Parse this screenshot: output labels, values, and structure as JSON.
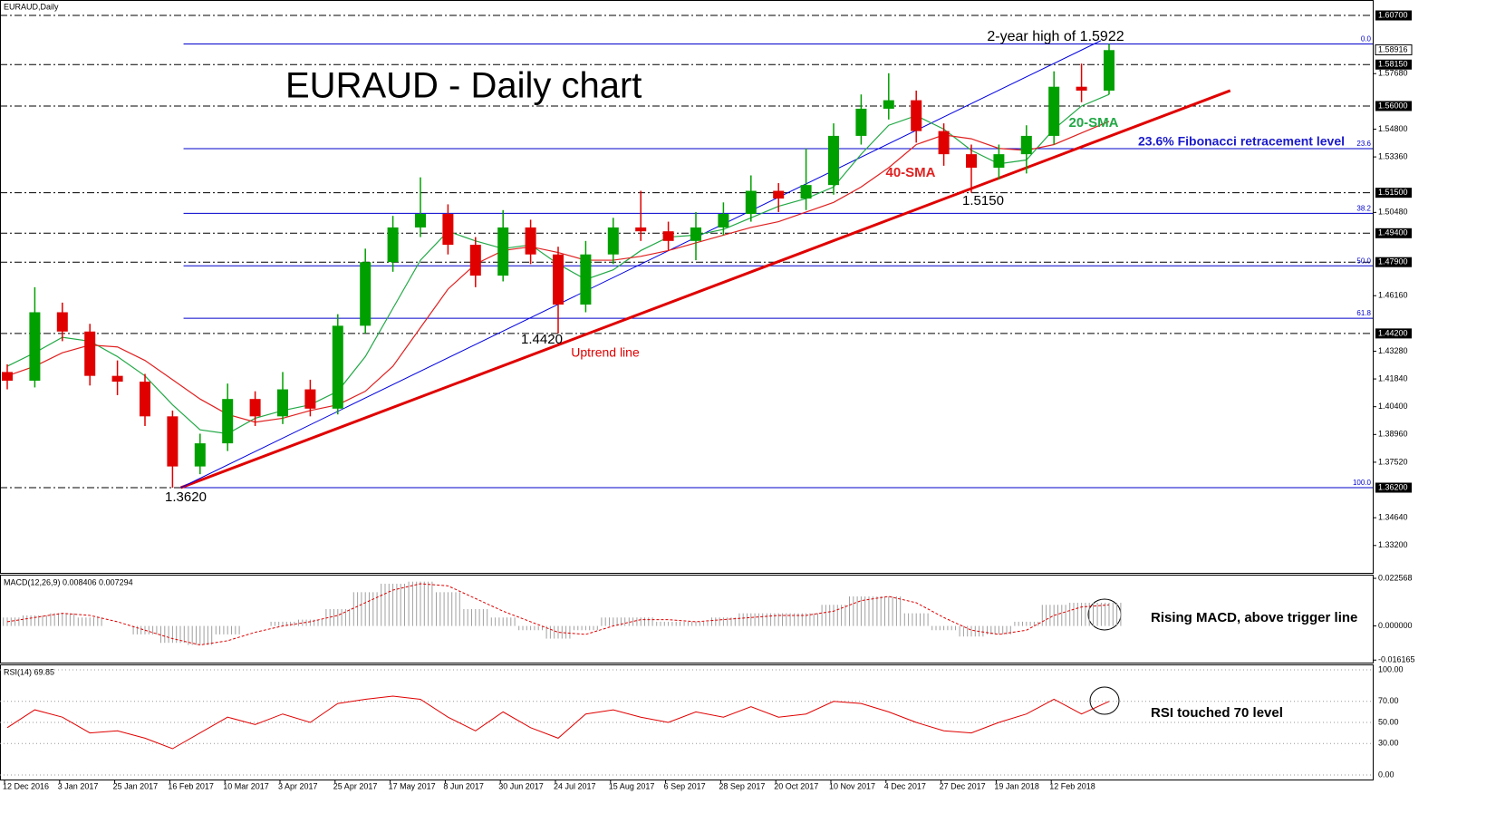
{
  "chart_data": [
    {
      "type": "candlestick",
      "symbol_label": "EURAUD,Daily",
      "title": "EURAUD - Daily chart",
      "categories": [
        "12 Dec 2016",
        null,
        "3 Jan 2017",
        null,
        "25 Jan 2017",
        null,
        "16 Feb 2017",
        null,
        "10 Mar 2017",
        null,
        "3 Apr 2017",
        null,
        "25 Apr 2017",
        null,
        "17 May 2017",
        null,
        "8 Jun 2017",
        null,
        "30 Jun 2017",
        null,
        "24 Jul 2017",
        null,
        "15 Aug 2017",
        null,
        "6 Sep 2017",
        null,
        "28 Sep 2017",
        null,
        "20 Oct 2017",
        null,
        "10 Nov 2017",
        null,
        "4 Dec 2017",
        null,
        "27 Dec 2017",
        null,
        "19 Jan 2018",
        null,
        "12 Feb 2018",
        null,
        null
      ],
      "open": [
        1.422,
        1.4175,
        1.453,
        1.443,
        1.42,
        1.417,
        1.399,
        1.373,
        1.385,
        1.408,
        1.399,
        1.413,
        1.403,
        1.446,
        1.479,
        1.497,
        1.504,
        1.488,
        1.472,
        1.497,
        1.483,
        1.457,
        1.483,
        1.497,
        1.495,
        1.49,
        1.497,
        1.504,
        1.516,
        1.512,
        1.519,
        1.5445,
        1.5586,
        1.563,
        1.547,
        1.535,
        1.528,
        1.535,
        1.5445,
        1.57,
        1.568
      ],
      "high": [
        1.426,
        1.466,
        1.458,
        1.447,
        1.428,
        1.421,
        1.402,
        1.39,
        1.416,
        1.412,
        1.422,
        1.418,
        1.452,
        1.486,
        1.503,
        1.523,
        1.509,
        1.492,
        1.506,
        1.501,
        1.487,
        1.49,
        1.502,
        1.516,
        1.5,
        1.505,
        1.51,
        1.524,
        1.52,
        1.538,
        1.551,
        1.566,
        1.577,
        1.568,
        1.551,
        1.54,
        1.54,
        1.55,
        1.578,
        1.582,
        1.5922
      ],
      "low": [
        1.413,
        1.414,
        1.438,
        1.415,
        1.41,
        1.394,
        1.362,
        1.369,
        1.381,
        1.394,
        1.395,
        1.399,
        1.4,
        1.442,
        1.474,
        1.492,
        1.483,
        1.466,
        1.469,
        1.478,
        1.442,
        1.453,
        1.478,
        1.49,
        1.485,
        1.48,
        1.493,
        1.5,
        1.505,
        1.506,
        1.514,
        1.54,
        1.553,
        1.541,
        1.529,
        1.515,
        1.522,
        1.525,
        1.54,
        1.562,
        1.566
      ],
      "close": [
        1.4175,
        1.453,
        1.443,
        1.42,
        1.417,
        1.399,
        1.373,
        1.385,
        1.408,
        1.399,
        1.413,
        1.403,
        1.446,
        1.479,
        1.497,
        1.504,
        1.488,
        1.472,
        1.497,
        1.483,
        1.457,
        1.483,
        1.497,
        1.495,
        1.49,
        1.497,
        1.504,
        1.516,
        1.512,
        1.519,
        1.5445,
        1.5586,
        1.563,
        1.547,
        1.535,
        1.528,
        1.535,
        1.5445,
        1.57,
        1.568,
        1.589
      ],
      "up_color": "#00a000",
      "down_color": "#e00000",
      "series": [
        {
          "name": "20-SMA",
          "color": "#22a846",
          "values": [
            1.425,
            1.432,
            1.44,
            1.438,
            1.43,
            1.42,
            1.405,
            1.392,
            1.39,
            1.398,
            1.402,
            1.405,
            1.412,
            1.43,
            1.455,
            1.48,
            1.495,
            1.49,
            1.486,
            1.488,
            1.478,
            1.47,
            1.475,
            1.485,
            1.492,
            1.493,
            1.496,
            1.502,
            1.508,
            1.512,
            1.518,
            1.535,
            1.55,
            1.555,
            1.548,
            1.537,
            1.53,
            1.532,
            1.548,
            1.56,
            1.566
          ]
        },
        {
          "name": "40-SMA",
          "color": "#e02020",
          "values": [
            1.42,
            1.425,
            1.432,
            1.436,
            1.435,
            1.428,
            1.418,
            1.408,
            1.4,
            1.396,
            1.398,
            1.402,
            1.405,
            1.412,
            1.425,
            1.445,
            1.465,
            1.478,
            1.485,
            1.487,
            1.484,
            1.48,
            1.48,
            1.482,
            1.485,
            1.489,
            1.493,
            1.497,
            1.5,
            1.505,
            1.51,
            1.518,
            1.528,
            1.54,
            1.545,
            1.543,
            1.538,
            1.537,
            1.54,
            1.546,
            1.552
          ]
        }
      ],
      "ylim": [
        1.3178,
        1.615
      ],
      "yticks": [
        {
          "value": 1.332,
          "label": "1.33200"
        },
        {
          "value": 1.3464,
          "label": "1.34640"
        },
        {
          "value": 1.3752,
          "label": "1.37520"
        },
        {
          "value": 1.3896,
          "label": "1.38960"
        },
        {
          "value": 1.404,
          "label": "1.40400"
        },
        {
          "value": 1.4184,
          "label": "1.41840"
        },
        {
          "value": 1.4328,
          "label": "1.43280"
        },
        {
          "value": 1.4616,
          "label": "1.46160"
        },
        {
          "value": 1.5048,
          "label": "1.50480"
        },
        {
          "value": 1.5336,
          "label": "1.53360"
        },
        {
          "value": 1.548,
          "label": "1.54800"
        },
        {
          "value": 1.5768,
          "label": "1.57680"
        }
      ],
      "key_levels": [
        {
          "value": 1.607,
          "label": "1.60700"
        },
        {
          "value": 1.5815,
          "label": "1.58150"
        },
        {
          "value": 1.56,
          "label": "1.56000"
        },
        {
          "value": 1.515,
          "label": "1.51500"
        },
        {
          "value": 1.494,
          "label": "1.49400"
        },
        {
          "value": 1.479,
          "label": "1.47900"
        },
        {
          "value": 1.442,
          "label": "1.44200"
        },
        {
          "value": 1.362,
          "label": "1.36200"
        }
      ],
      "current_price": {
        "value": 1.58916,
        "label": "1.58916"
      },
      "fib_color": "#0000cc",
      "fib_levels": [
        {
          "label": "0.0",
          "value": 1.5922
        },
        {
          "label": "23.6",
          "value": 1.5379
        },
        {
          "label": "38.2",
          "value": 1.5043
        },
        {
          "label": "50.0",
          "value": 1.4771
        },
        {
          "label": "61.8",
          "value": 1.4499
        },
        {
          "label": "100.0",
          "value": 1.362
        }
      ],
      "trendlines": [
        {
          "color": "#e00000",
          "width": 3,
          "points": [
            [
              6.3,
              1.362
            ],
            [
              44.4,
              1.568
            ]
          ]
        },
        {
          "color": "#0000e0",
          "width": 1,
          "points": [
            [
              6.3,
              1.362
            ],
            [
              39.7,
              1.5939
            ]
          ]
        }
      ],
      "annotations": [
        {
          "text": "2-year high of 1.5922",
          "color": "#000000"
        },
        {
          "text": "23.6% Fibonacci retracement level",
          "color": "#1a1acc"
        },
        {
          "text": "1.5150",
          "color": "#000000"
        },
        {
          "text": "1.4420",
          "color": "#000000"
        },
        {
          "text": "1.3620",
          "color": "#000000"
        },
        {
          "text": "Uptrend line",
          "color": "#e00000"
        }
      ]
    },
    {
      "type": "macd",
      "title": "MACD(12,26,9) 0.008406 0.007294",
      "histogram": {
        "color": "#a0a0a0",
        "values": [
          0.004,
          0.005,
          0.006,
          0.004,
          0.0,
          -0.004,
          -0.008,
          -0.009,
          -0.004,
          0.0,
          0.002,
          0.003,
          0.008,
          0.016,
          0.02,
          0.021,
          0.016,
          0.008,
          0.004,
          -0.002,
          -0.006,
          -0.002,
          0.004,
          0.004,
          0.002,
          0.002,
          0.004,
          0.006,
          0.006,
          0.006,
          0.01,
          0.014,
          0.014,
          0.006,
          -0.002,
          -0.005,
          -0.004,
          0.002,
          0.01,
          0.011,
          0.011
        ]
      },
      "signal": {
        "color": "#e00000",
        "values": [
          0.002,
          0.004,
          0.006,
          0.005,
          0.002,
          -0.002,
          -0.006,
          -0.009,
          -0.007,
          -0.003,
          0.0,
          0.002,
          0.005,
          0.011,
          0.017,
          0.02,
          0.019,
          0.013,
          0.007,
          0.002,
          -0.003,
          -0.004,
          0.0,
          0.003,
          0.003,
          0.002,
          0.003,
          0.004,
          0.005,
          0.005,
          0.007,
          0.012,
          0.014,
          0.011,
          0.004,
          -0.002,
          -0.004,
          -0.002,
          0.005,
          0.009,
          0.01
        ]
      },
      "ylim": [
        -0.01736,
        0.0243
      ],
      "yticks": [
        0.022568,
        {
          "value": 0,
          "label": "0.000000"
        },
        -0.016165
      ],
      "annotation": "Rising MACD, above trigger line"
    },
    {
      "type": "line",
      "title": "RSI(14) 69.85",
      "color": "#e00000",
      "values": [
        45,
        62,
        55,
        40,
        42,
        35,
        25,
        40,
        55,
        48,
        58,
        50,
        68,
        72,
        75,
        72,
        55,
        42,
        60,
        45,
        35,
        58,
        62,
        55,
        50,
        60,
        55,
        65,
        55,
        58,
        70,
        68,
        60,
        50,
        42,
        40,
        50,
        58,
        72,
        58,
        70
      ],
      "ylim": [
        0,
        100
      ],
      "yticks": [
        {
          "value": 100,
          "label": "100.00"
        },
        {
          "value": 70,
          "label": "70.00"
        },
        {
          "value": 50,
          "label": "50.00"
        },
        {
          "value": 30,
          "label": "30.00"
        },
        {
          "value": 0,
          "label": "0.00"
        }
      ],
      "annotation": "RSI touched 70 level"
    }
  ]
}
